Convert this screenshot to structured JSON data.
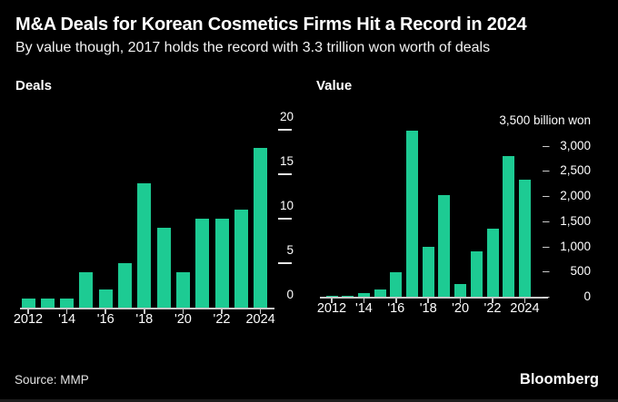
{
  "header": {
    "title": "M&A Deals for Korean Cosmetics Firms Hit a Record in 2024",
    "subtitle": "By value though, 2017 holds the record with 3.3 trillion won worth of deals"
  },
  "footer": {
    "source": "Source: MMP",
    "brand": "Bloomberg"
  },
  "colors": {
    "background": "#000000",
    "bar": "#1dcb93",
    "text": "#ffffff",
    "axis": "#c9c9c9"
  },
  "chart_data": [
    {
      "type": "bar",
      "title": "Deals",
      "categories": [
        "2012",
        "2013",
        "2014",
        "2015",
        "2016",
        "2017",
        "2018",
        "2019",
        "2020",
        "2021",
        "2022",
        "2023",
        "2024"
      ],
      "values": [
        1,
        1,
        1,
        4,
        2,
        5,
        14,
        9,
        4,
        10,
        10,
        11,
        18
      ],
      "ylim": [
        0,
        20
      ],
      "grid": false,
      "legend": "none",
      "y_axis_side": "right",
      "y_axis_style": "tick-under-label",
      "y_ticks": [
        {
          "value": 0,
          "label": "0"
        },
        {
          "value": 5,
          "label": "5"
        },
        {
          "value": 10,
          "label": "10"
        },
        {
          "value": 15,
          "label": "15"
        },
        {
          "value": 20,
          "label": "20"
        }
      ],
      "x_ticks": [
        {
          "index": 0,
          "label": "2012"
        },
        {
          "index": 2,
          "label": "'14"
        },
        {
          "index": 4,
          "label": "'16"
        },
        {
          "index": 6,
          "label": "'18"
        },
        {
          "index": 8,
          "label": "'20"
        },
        {
          "index": 10,
          "label": "'22"
        },
        {
          "index": 12,
          "label": "2024"
        }
      ]
    },
    {
      "type": "bar",
      "title": "Value",
      "axis_title": "3,500 billion won",
      "axis_title_value": 3500,
      "categories": [
        "2012",
        "2013",
        "2014",
        "2015",
        "2016",
        "2017",
        "2018",
        "2019",
        "2020",
        "2021",
        "2022",
        "2023",
        "2024"
      ],
      "values": [
        10,
        10,
        80,
        150,
        490,
        3300,
        990,
        2020,
        260,
        910,
        1350,
        2800,
        2330
      ],
      "ylim": [
        0,
        3500
      ],
      "grid": false,
      "legend": "none",
      "y_axis_side": "right",
      "y_axis_style": "dash-prefix",
      "y_ticks": [
        {
          "value": 0,
          "label": "0"
        },
        {
          "value": 500,
          "label": "500"
        },
        {
          "value": 1000,
          "label": "1,000"
        },
        {
          "value": 1500,
          "label": "1,500"
        },
        {
          "value": 2000,
          "label": "2,000"
        },
        {
          "value": 2500,
          "label": "2,500"
        },
        {
          "value": 3000,
          "label": "3,000"
        }
      ],
      "x_ticks": [
        {
          "index": 0,
          "label": "2012"
        },
        {
          "index": 2,
          "label": "'14"
        },
        {
          "index": 4,
          "label": "'16"
        },
        {
          "index": 6,
          "label": "'18"
        },
        {
          "index": 8,
          "label": "'20"
        },
        {
          "index": 10,
          "label": "'22"
        },
        {
          "index": 12,
          "label": "2024"
        }
      ]
    }
  ]
}
